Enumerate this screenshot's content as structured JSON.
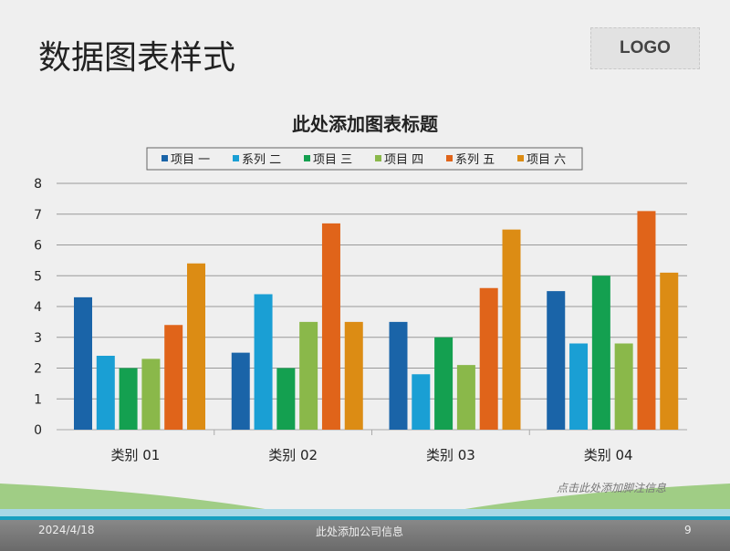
{
  "slide": {
    "title": "数据图表样式",
    "logo": "LOGO",
    "note": "点击此处添加脚注信息",
    "date": "2024/4/18",
    "company": "此处添加公司信息",
    "page": "9"
  },
  "chart_data": {
    "type": "bar",
    "title": "此处添加图表标题",
    "categories": [
      "类别 01",
      "类别 02",
      "类别 03",
      "类别 04"
    ],
    "series": [
      {
        "name": "项目 一",
        "color": "#1a64a8",
        "values": [
          4.3,
          2.5,
          3.5,
          4.5
        ]
      },
      {
        "name": "系列 二",
        "color": "#1a9fd4",
        "values": [
          2.4,
          4.4,
          1.8,
          2.8
        ]
      },
      {
        "name": "项目 三",
        "color": "#14a050",
        "values": [
          2.0,
          2.0,
          3.0,
          5.0
        ]
      },
      {
        "name": "项目 四",
        "color": "#8ab84a",
        "values": [
          2.3,
          3.5,
          2.1,
          2.8
        ]
      },
      {
        "name": "系列 五",
        "color": "#e0641a",
        "values": [
          3.4,
          6.7,
          4.6,
          7.1
        ]
      },
      {
        "name": "项目 六",
        "color": "#dc8c14",
        "values": [
          5.4,
          3.5,
          6.5,
          5.1
        ]
      }
    ],
    "ylim": [
      0,
      8
    ],
    "yticks": [
      "0",
      "1",
      "2",
      "3",
      "4",
      "5",
      "6",
      "7",
      "8"
    ],
    "grid": true,
    "legend": "top"
  }
}
